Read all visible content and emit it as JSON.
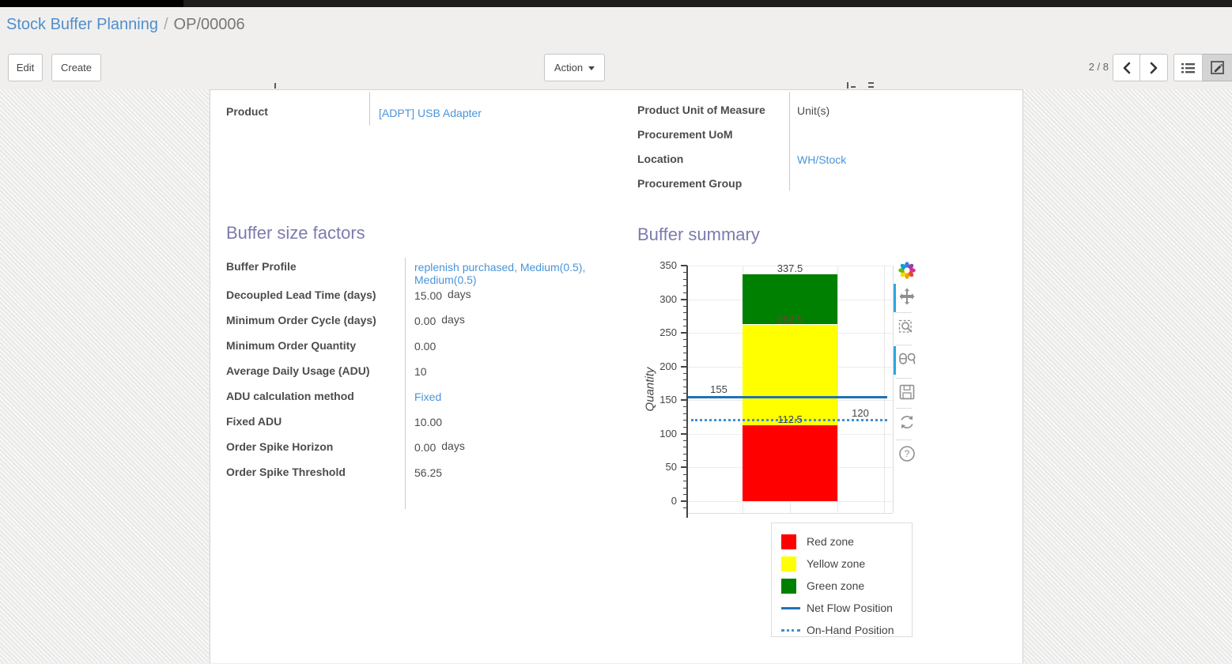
{
  "breadcrumb": {
    "parent": "Stock Buffer Planning",
    "separator": "/",
    "current": "OP/00006"
  },
  "control_panel": {
    "edit_button": "Edit",
    "create_button": "Create",
    "action_button": "Action",
    "pager": {
      "text": "2 / 8"
    },
    "view_switcher": {
      "views": [
        "list-view-icon",
        "form-view-icon"
      ],
      "active_view": "form"
    }
  },
  "sheet": {
    "product_field": {
      "label": "Product",
      "value": "[ADPT] USB Adapter",
      "link": true
    },
    "info_fields": [
      {
        "label": "Product Unit of Measure",
        "value": "Unit(s)",
        "link": false
      },
      {
        "label": "Procurement UoM",
        "value": "",
        "link": false
      },
      {
        "label": "Location",
        "value": "WH/Stock",
        "link": true
      },
      {
        "label": "Procurement Group",
        "value": "",
        "link": false
      }
    ],
    "buffer_factors": {
      "title": "Buffer size factors",
      "rows": [
        {
          "label": "Buffer Profile",
          "value": "replenish purchased, Medium(0.5), Medium(0.5)",
          "link": true
        },
        {
          "label": "Decoupled Lead Time (days)",
          "value": "15.00",
          "suffix": "days"
        },
        {
          "label": "Minimum Order Cycle (days)",
          "value": "0.00",
          "suffix": "days"
        },
        {
          "label": "Minimum Order Quantity",
          "value": "0.00"
        },
        {
          "label": "Average Daily Usage (ADU)",
          "value": "10"
        },
        {
          "label": "ADU calculation method",
          "value": "Fixed",
          "link": true
        },
        {
          "label": "Fixed ADU",
          "value": "10.00"
        },
        {
          "label": "Order Spike Horizon",
          "value": "0.00",
          "suffix": "days"
        },
        {
          "label": "Order Spike Threshold",
          "value": "56.25"
        }
      ]
    },
    "buffer_summary": {
      "title": "Buffer summary"
    }
  },
  "chart_data": {
    "type": "bar",
    "title": "Buffer summary",
    "xlabel": "",
    "ylabel": "Quantity",
    "ylim": [
      -17.6,
      350
    ],
    "yticks": [
      0,
      50,
      100,
      150,
      200,
      250,
      300,
      350
    ],
    "minor_tick_step": 10,
    "grid": true,
    "categories": [
      ""
    ],
    "stacked_bar": {
      "segments": [
        {
          "name": "Red zone",
          "color": "#ff0000",
          "from": 0,
          "to": 112.5,
          "label": "112.5",
          "label_color": "#444444"
        },
        {
          "name": "Yellow zone",
          "color": "#ffff00",
          "from": 112.5,
          "to": 262.5,
          "label": "262.5",
          "label_color": "#6e4639"
        },
        {
          "name": "Green zone",
          "color": "#008000",
          "from": 262.5,
          "to": 337.5,
          "label": "337.5",
          "label_color": "#444444"
        }
      ]
    },
    "hlines": [
      {
        "name": "Net Flow Position",
        "value": 155,
        "label": "155",
        "style": "solid",
        "color": "#2272b2",
        "label_side": "left"
      },
      {
        "name": "On-Hand Position",
        "value": 120,
        "label": "120",
        "style": "dotted",
        "color": "#4090d4",
        "label_side": "right"
      }
    ],
    "legend": {
      "position": "bottom-right",
      "entries": [
        {
          "name": "Red zone",
          "marker": "square",
          "color": "#ff0000"
        },
        {
          "name": "Yellow zone",
          "marker": "square",
          "color": "#ffff00"
        },
        {
          "name": "Green zone",
          "marker": "square",
          "color": "#008000"
        },
        {
          "name": "Net Flow Position",
          "marker": "line",
          "color": "#2272b2"
        },
        {
          "name": "On-Hand Position",
          "marker": "dotted-line",
          "color": "#4090d4"
        }
      ]
    }
  },
  "modebar": {
    "icons": [
      "plotly-logo-icon",
      "pan-icon",
      "box-zoom-icon",
      "compare-hover-icon",
      "save-icon",
      "reset-axes-icon",
      "help-icon"
    ],
    "active": [
      "pan-icon",
      "compare-hover-icon"
    ]
  }
}
